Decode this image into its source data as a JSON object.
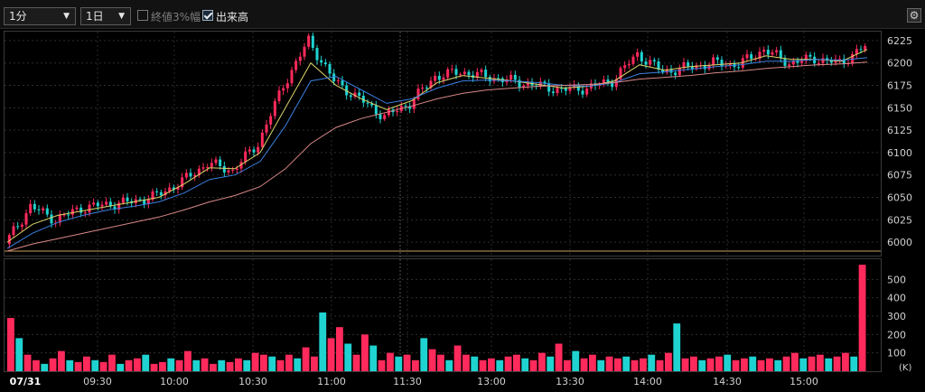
{
  "toolbar": {
    "interval_select": "1分",
    "period_select": "1日",
    "opt_close_range": "終値3%幅",
    "opt_close_range_checked": false,
    "opt_volume": "出来高",
    "opt_volume_checked": true,
    "settings_icon": "gear-icon"
  },
  "colors": {
    "up": "#ff2a5c",
    "down": "#1fd3d1",
    "ma_short": "#d9d36a",
    "ma_mid": "#3a7fe0",
    "ma_long": "#d98888",
    "hline": "#c8a060"
  },
  "chart_data": [
    {
      "type": "candlestick",
      "title": "",
      "x_ticks": [
        "07/31",
        "09:30",
        "10:00",
        "10:30",
        "11:00",
        "11:30",
        "13:00",
        "13:30",
        "14:00",
        "14:30",
        "15:00"
      ],
      "y_ticks": [
        6000,
        6025,
        6050,
        6075,
        6100,
        6125,
        6150,
        6175,
        6200,
        6225
      ],
      "ylim": [
        5985,
        6235
      ],
      "grid": true,
      "series": [
        {
          "name": "",
          "type": "close",
          "times": [
            "09:00",
            "09:10",
            "09:20",
            "09:30",
            "09:40",
            "09:50",
            "10:00",
            "10:10",
            "10:20",
            "10:30",
            "10:40",
            "10:50",
            "11:00",
            "11:10",
            "11:20",
            "11:30",
            "12:30",
            "12:40",
            "12:50",
            "13:00",
            "13:10",
            "13:20",
            "13:30",
            "13:40",
            "13:50",
            "14:00",
            "14:10",
            "14:20",
            "14:30",
            "14:40",
            "14:50",
            "15:00",
            "15:10",
            "15:20",
            "15:25"
          ],
          "values": [
            5998,
            6040,
            6025,
            6038,
            6042,
            6045,
            6052,
            6068,
            6088,
            6080,
            6110,
            6175,
            6225,
            6180,
            6160,
            6140,
            6155,
            6185,
            6190,
            6185,
            6180,
            6175,
            6170,
            6172,
            6180,
            6210,
            6190,
            6195,
            6200,
            6198,
            6215,
            6200,
            6205,
            6200,
            6218
          ]
        },
        {
          "name": "",
          "type": "ma",
          "values": [
            6000,
            6020,
            6030,
            6035,
            6040,
            6045,
            6050,
            6065,
            6083,
            6082,
            6100,
            6150,
            6200,
            6175,
            6160,
            6148,
            6158,
            6178,
            6186,
            6183,
            6180,
            6176,
            6172,
            6174,
            6180,
            6198,
            6192,
            6196,
            6198,
            6200,
            6208,
            6204,
            6204,
            6202,
            6215
          ]
        },
        {
          "name": "",
          "type": "ma",
          "values": [
            5993,
            6010,
            6022,
            6030,
            6036,
            6040,
            6045,
            6055,
            6070,
            6075,
            6090,
            6130,
            6180,
            6185,
            6170,
            6155,
            6160,
            6172,
            6180,
            6181,
            6180,
            6178,
            6175,
            6174,
            6178,
            6188,
            6190,
            6193,
            6196,
            6198,
            6202,
            6202,
            6204,
            6203,
            6206
          ]
        },
        {
          "name": "",
          "type": "ma",
          "values": [
            5990,
            5998,
            6004,
            6010,
            6016,
            6022,
            6028,
            6036,
            6045,
            6052,
            6062,
            6082,
            6110,
            6128,
            6138,
            6145,
            6152,
            6160,
            6166,
            6170,
            6172,
            6174,
            6175,
            6176,
            6178,
            6182,
            6184,
            6186,
            6189,
            6191,
            6194,
            6196,
            6198,
            6199,
            6201
          ]
        },
        {
          "name": "",
          "type": "hline",
          "value": 5990
        }
      ]
    },
    {
      "type": "bar",
      "title": "",
      "unit_label": "(K)",
      "y_ticks": [
        100,
        200,
        300,
        400,
        500
      ],
      "ylim": [
        0,
        600
      ],
      "grid": true,
      "values": [
        290,
        180,
        90,
        60,
        40,
        70,
        110,
        60,
        50,
        80,
        60,
        50,
        90,
        40,
        60,
        70,
        90,
        40,
        50,
        70,
        60,
        110,
        60,
        70,
        40,
        60,
        50,
        70,
        60,
        100,
        90,
        80,
        60,
        90,
        70,
        130,
        80,
        320,
        180,
        240,
        150,
        90,
        200,
        140,
        60,
        100,
        80,
        90,
        60,
        180,
        120,
        90,
        60,
        140,
        90,
        80,
        60,
        70,
        60,
        80,
        90,
        70,
        60,
        100,
        80,
        150,
        60,
        110,
        70,
        90,
        60,
        80,
        70,
        80,
        60,
        70,
        90,
        60,
        100,
        260,
        70,
        80,
        60,
        70,
        80,
        90,
        60,
        70,
        80,
        60,
        70,
        60,
        80,
        100,
        70,
        80,
        90,
        70,
        80,
        100,
        80,
        580
      ]
    }
  ]
}
